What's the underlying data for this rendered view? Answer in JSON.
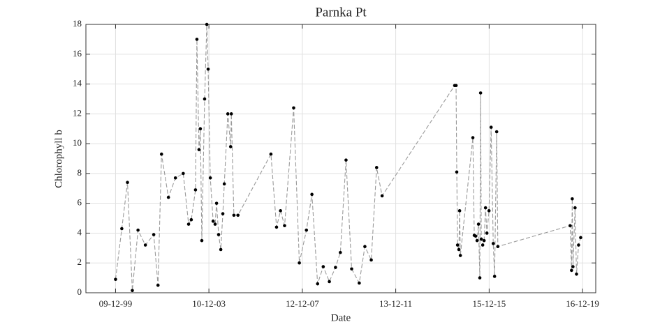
{
  "chart_data": {
    "type": "line",
    "title": "Parnka Pt",
    "x_label": "Date",
    "y_label": "Chlorophyll b",
    "grid": true,
    "xlim": [
      "1998-09-01",
      "2020-07-10"
    ],
    "ylim": [
      0,
      18
    ],
    "yticks": [
      0,
      2,
      4,
      6,
      8,
      10,
      12,
      14,
      16,
      18
    ],
    "xticks": [
      {
        "value": "1999-12-09",
        "label": "09-12-99"
      },
      {
        "value": "2003-12-10",
        "label": "10-12-03"
      },
      {
        "value": "2007-12-12",
        "label": "12-12-07"
      },
      {
        "value": "2011-12-13",
        "label": "13-12-11"
      },
      {
        "value": "2015-12-15",
        "label": "15-12-15"
      },
      {
        "value": "2019-12-16",
        "label": "16-12-19"
      }
    ],
    "x": [
      "1999-12-09",
      "2000-03-16",
      "2000-06-13",
      "2000-08-28",
      "2000-11-25",
      "2001-03-20",
      "2001-07-29",
      "2001-10-04",
      "2001-11-28",
      "2002-03-16",
      "2002-07-04",
      "2002-11-03",
      "2003-01-26",
      "2003-03-09",
      "2003-05-14",
      "2003-06-05",
      "2003-07-08",
      "2003-07-29",
      "2003-08-21",
      "2003-10-04",
      "2003-11-07",
      "2003-11-28",
      "2004-01-01",
      "2004-02-14",
      "2004-03-16",
      "2004-04-08",
      "2004-05-10",
      "2004-06-13",
      "2004-07-15",
      "2004-08-07",
      "2004-10-01",
      "2004-11-14",
      "2004-11-25",
      "2005-01-04",
      "2005-03-09",
      "2006-08-07",
      "2006-11-03",
      "2007-01-04",
      "2007-03-09",
      "2007-07-29",
      "2007-10-26",
      "2008-02-14",
      "2008-05-10",
      "2008-08-07",
      "2008-11-03",
      "2009-02-07",
      "2009-05-14",
      "2009-07-29",
      "2009-10-26",
      "2010-01-22",
      "2010-05-21",
      "2010-08-17",
      "2010-11-25",
      "2011-02-17",
      "2011-05-14",
      "2014-06-23",
      "2014-07-15",
      "2014-07-26",
      "2014-08-07",
      "2014-08-28",
      "2014-09-09",
      "2014-09-20",
      "2015-04-04",
      "2015-04-26",
      "2015-05-17",
      "2015-06-09",
      "2015-07-01",
      "2015-07-22",
      "2015-08-03",
      "2015-08-14",
      "2015-09-05",
      "2015-09-27",
      "2015-10-19",
      "2015-11-10",
      "2015-12-13",
      "2016-01-15",
      "2016-02-17",
      "2016-03-09",
      "2016-04-11",
      "2016-04-29",
      "2019-06-05",
      "2019-06-27",
      "2019-07-08",
      "2019-07-19",
      "2019-08-21",
      "2019-09-13",
      "2019-10-15",
      "2019-11-17"
    ],
    "series": [
      {
        "color": "#9a9a9a",
        "marker_color": "#000000",
        "values": [
          0.9,
          4.3,
          7.4,
          0.15,
          4.2,
          3.2,
          3.9,
          0.5,
          9.3,
          6.4,
          7.7,
          8.0,
          4.6,
          4.9,
          6.9,
          17.0,
          9.6,
          11.0,
          3.5,
          13.0,
          18.0,
          15.0,
          7.7,
          4.8,
          4.6,
          6.0,
          3.9,
          2.9,
          5.3,
          7.3,
          12.0,
          9.8,
          12.0,
          5.2,
          5.2,
          9.3,
          4.4,
          5.5,
          4.5,
          12.4,
          2.0,
          4.2,
          6.6,
          0.6,
          1.75,
          0.75,
          1.7,
          2.7,
          8.9,
          1.6,
          0.65,
          3.1,
          2.2,
          8.4,
          6.5,
          13.9,
          13.9,
          8.1,
          3.2,
          2.9,
          5.5,
          2.5,
          10.4,
          3.85,
          3.8,
          3.5,
          4.6,
          1.0,
          13.4,
          3.6,
          3.2,
          3.5,
          5.7,
          4.0,
          5.5,
          11.1,
          3.3,
          1.1,
          10.8,
          3.1,
          4.5,
          1.5,
          6.3,
          1.75,
          5.7,
          1.25,
          3.2,
          3.7
        ]
      }
    ]
  }
}
